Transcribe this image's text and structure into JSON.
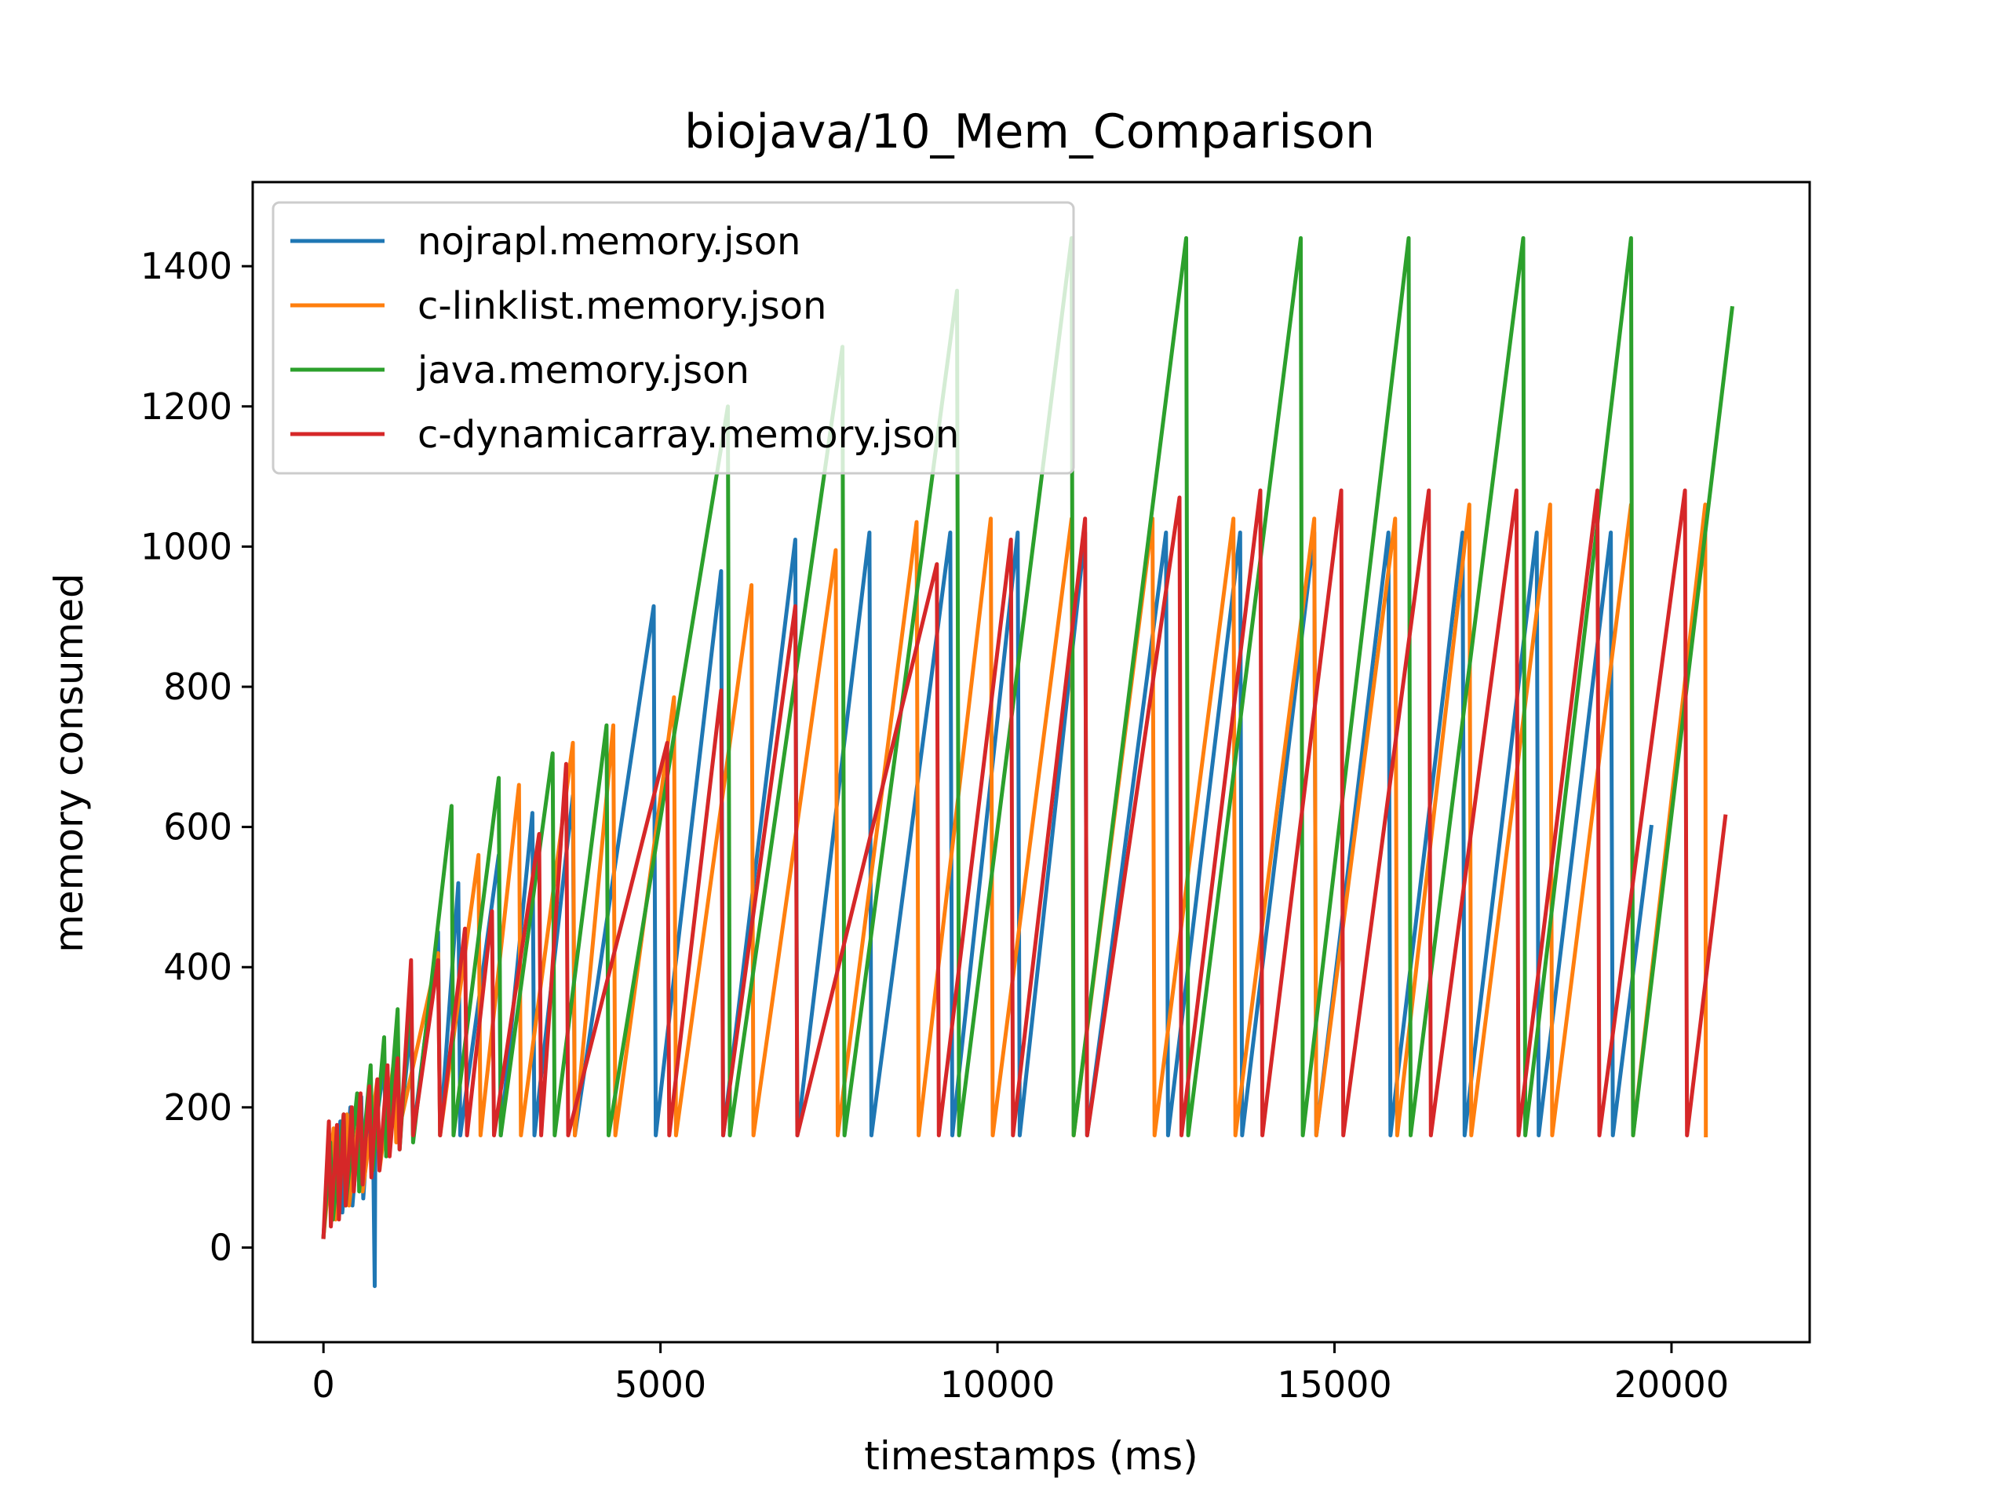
{
  "chart_data": {
    "type": "line",
    "title": "biojava/10_Mem_Comparison",
    "xlabel": "timestamps (ms)",
    "ylabel": "memory consumed",
    "xlim": [
      -1050,
      22050
    ],
    "ylim": [
      -135,
      1520
    ],
    "xticks": [
      0,
      5000,
      10000,
      15000,
      20000
    ],
    "yticks": [
      0,
      200,
      400,
      600,
      800,
      1000,
      1200,
      1400
    ],
    "grid": false,
    "legend_position": "upper-left",
    "series": [
      {
        "name": "nojrapl.memory.json",
        "color": "#1f77b4",
        "points": [
          [
            0,
            15
          ],
          [
            100,
            160
          ],
          [
            130,
            40
          ],
          [
            250,
            180
          ],
          [
            280,
            50
          ],
          [
            400,
            200
          ],
          [
            430,
            60
          ],
          [
            560,
            215
          ],
          [
            590,
            70
          ],
          [
            700,
            230
          ],
          [
            740,
            120
          ],
          [
            760,
            -55
          ],
          [
            770,
            170
          ],
          [
            900,
            260
          ],
          [
            930,
            150
          ],
          [
            1100,
            290
          ],
          [
            1130,
            160
          ],
          [
            1300,
            320
          ],
          [
            1330,
            160
          ],
          [
            1700,
            450
          ],
          [
            1730,
            160
          ],
          [
            2000,
            520
          ],
          [
            2030,
            160
          ],
          [
            2600,
            560
          ],
          [
            2630,
            160
          ],
          [
            3100,
            620
          ],
          [
            3130,
            160
          ],
          [
            3700,
            645
          ],
          [
            3730,
            160
          ],
          [
            4900,
            915
          ],
          [
            4930,
            160
          ],
          [
            5900,
            965
          ],
          [
            5930,
            160
          ],
          [
            7000,
            1010
          ],
          [
            7030,
            160
          ],
          [
            8100,
            1020
          ],
          [
            8130,
            160
          ],
          [
            9300,
            1020
          ],
          [
            9330,
            160
          ],
          [
            10300,
            1020
          ],
          [
            10330,
            160
          ],
          [
            11300,
            1020
          ],
          [
            11330,
            160
          ],
          [
            12500,
            1020
          ],
          [
            12530,
            160
          ],
          [
            13600,
            1020
          ],
          [
            13630,
            160
          ],
          [
            14700,
            1020
          ],
          [
            14730,
            160
          ],
          [
            15800,
            1020
          ],
          [
            15830,
            160
          ],
          [
            16900,
            1020
          ],
          [
            16930,
            160
          ],
          [
            18000,
            1020
          ],
          [
            18030,
            160
          ],
          [
            19100,
            1020
          ],
          [
            19130,
            160
          ],
          [
            19700,
            600
          ]
        ]
      },
      {
        "name": "c-linklist.memory.json",
        "color": "#ff7f0e",
        "points": [
          [
            0,
            15
          ],
          [
            150,
            170
          ],
          [
            180,
            40
          ],
          [
            350,
            190
          ],
          [
            380,
            60
          ],
          [
            550,
            210
          ],
          [
            580,
            80
          ],
          [
            800,
            240
          ],
          [
            830,
            110
          ],
          [
            1050,
            270
          ],
          [
            1080,
            150
          ],
          [
            1700,
            420
          ],
          [
            1730,
            160
          ],
          [
            2300,
            560
          ],
          [
            2330,
            160
          ],
          [
            2900,
            660
          ],
          [
            2930,
            160
          ],
          [
            3700,
            720
          ],
          [
            3730,
            160
          ],
          [
            4300,
            745
          ],
          [
            4330,
            160
          ],
          [
            5200,
            785
          ],
          [
            5230,
            160
          ],
          [
            6350,
            945
          ],
          [
            6380,
            160
          ],
          [
            7600,
            995
          ],
          [
            7630,
            160
          ],
          [
            8800,
            1035
          ],
          [
            8830,
            160
          ],
          [
            9900,
            1040
          ],
          [
            9930,
            160
          ],
          [
            11100,
            1040
          ],
          [
            11130,
            160
          ],
          [
            12300,
            1040
          ],
          [
            12330,
            160
          ],
          [
            13500,
            1040
          ],
          [
            13530,
            160
          ],
          [
            14700,
            1040
          ],
          [
            14730,
            160
          ],
          [
            15900,
            1040
          ],
          [
            15930,
            160
          ],
          [
            17000,
            1060
          ],
          [
            17030,
            160
          ],
          [
            18200,
            1060
          ],
          [
            18230,
            160
          ],
          [
            19400,
            1060
          ],
          [
            19430,
            160
          ],
          [
            20500,
            1060
          ],
          [
            20510,
            160
          ]
        ]
      },
      {
        "name": "java.memory.json",
        "color": "#2ca02c",
        "points": [
          [
            0,
            15
          ],
          [
            100,
            150
          ],
          [
            140,
            40
          ],
          [
            300,
            190
          ],
          [
            330,
            60
          ],
          [
            500,
            220
          ],
          [
            530,
            80
          ],
          [
            700,
            260
          ],
          [
            730,
            110
          ],
          [
            900,
            300
          ],
          [
            930,
            130
          ],
          [
            1100,
            340
          ],
          [
            1130,
            140
          ],
          [
            1300,
            380
          ],
          [
            1330,
            150
          ],
          [
            1900,
            630
          ],
          [
            1930,
            160
          ],
          [
            2600,
            670
          ],
          [
            2630,
            160
          ],
          [
            3400,
            705
          ],
          [
            3430,
            160
          ],
          [
            4200,
            745
          ],
          [
            4230,
            160
          ],
          [
            6000,
            1200
          ],
          [
            6030,
            160
          ],
          [
            7700,
            1285
          ],
          [
            7730,
            160
          ],
          [
            9400,
            1365
          ],
          [
            9430,
            160
          ],
          [
            11100,
            1440
          ],
          [
            11130,
            160
          ],
          [
            12800,
            1440
          ],
          [
            12830,
            160
          ],
          [
            14500,
            1440
          ],
          [
            14530,
            160
          ],
          [
            16100,
            1440
          ],
          [
            16130,
            160
          ],
          [
            17800,
            1440
          ],
          [
            17830,
            160
          ],
          [
            19400,
            1440
          ],
          [
            19430,
            160
          ],
          [
            20900,
            1340
          ]
        ]
      },
      {
        "name": "c-dynamicarray.memory.json",
        "color": "#d62728",
        "points": [
          [
            0,
            15
          ],
          [
            80,
            180
          ],
          [
            110,
            30
          ],
          [
            200,
            175
          ],
          [
            230,
            40
          ],
          [
            300,
            190
          ],
          [
            330,
            60
          ],
          [
            420,
            200
          ],
          [
            450,
            80
          ],
          [
            550,
            220
          ],
          [
            580,
            90
          ],
          [
            680,
            230
          ],
          [
            710,
            100
          ],
          [
            800,
            240
          ],
          [
            830,
            110
          ],
          [
            950,
            260
          ],
          [
            980,
            130
          ],
          [
            1100,
            270
          ],
          [
            1130,
            140
          ],
          [
            1300,
            410
          ],
          [
            1330,
            160
          ],
          [
            1700,
            410
          ],
          [
            1730,
            160
          ],
          [
            2100,
            455
          ],
          [
            2130,
            160
          ],
          [
            2500,
            480
          ],
          [
            2530,
            160
          ],
          [
            3200,
            590
          ],
          [
            3230,
            160
          ],
          [
            3600,
            690
          ],
          [
            3630,
            160
          ],
          [
            5100,
            720
          ],
          [
            5130,
            160
          ],
          [
            5900,
            795
          ],
          [
            5930,
            160
          ],
          [
            7000,
            915
          ],
          [
            7030,
            160
          ],
          [
            9100,
            975
          ],
          [
            9130,
            160
          ],
          [
            10200,
            1010
          ],
          [
            10230,
            160
          ],
          [
            11300,
            1040
          ],
          [
            11330,
            160
          ],
          [
            12700,
            1070
          ],
          [
            12730,
            160
          ],
          [
            13900,
            1080
          ],
          [
            13930,
            160
          ],
          [
            15100,
            1080
          ],
          [
            15130,
            160
          ],
          [
            16400,
            1080
          ],
          [
            16430,
            160
          ],
          [
            17700,
            1080
          ],
          [
            17730,
            160
          ],
          [
            18900,
            1080
          ],
          [
            18930,
            160
          ],
          [
            20200,
            1080
          ],
          [
            20230,
            160
          ],
          [
            20800,
            615
          ]
        ]
      }
    ]
  }
}
